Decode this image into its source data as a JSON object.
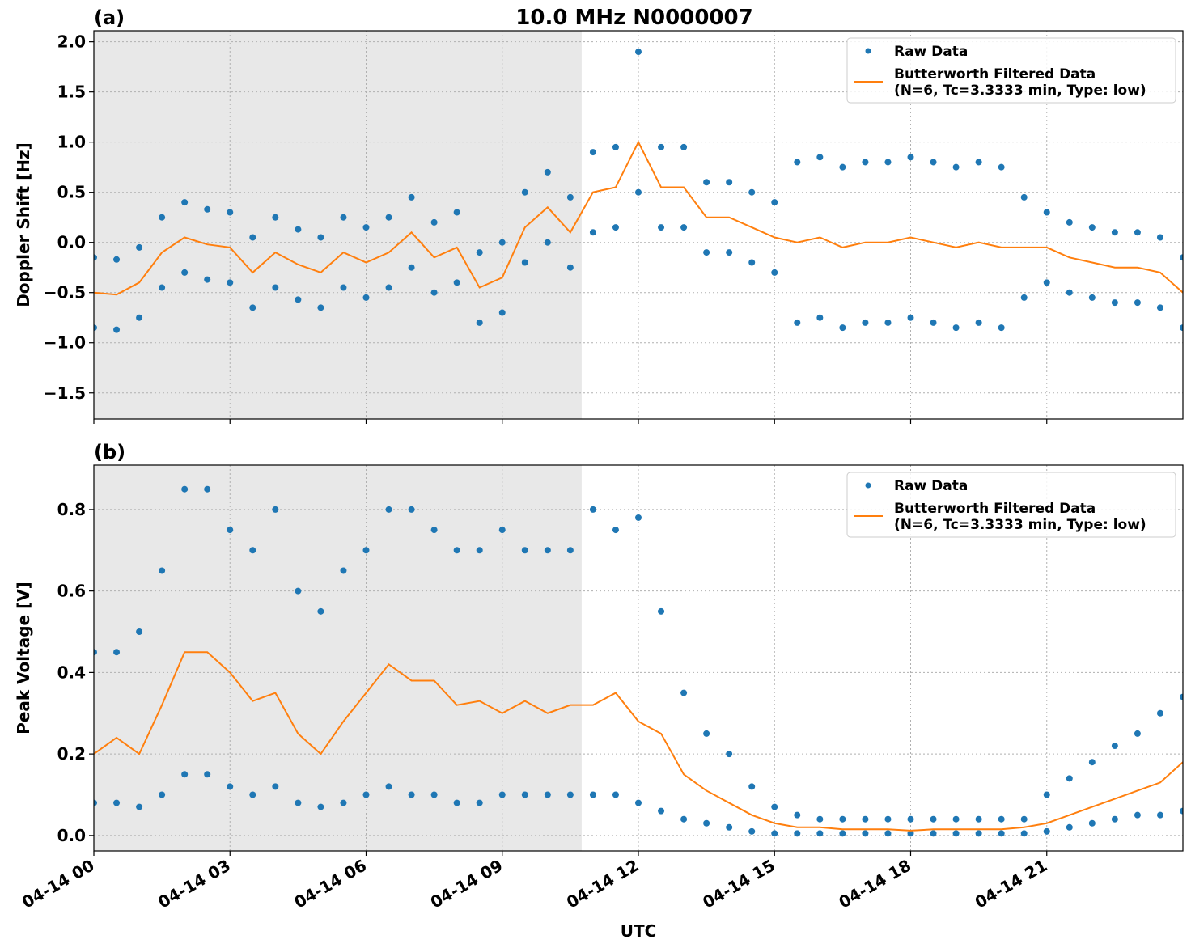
{
  "title": "10.0 MHz N0000007",
  "chart_data": [
    {
      "type": "scatter",
      "panel_label": "(a)",
      "ylabel": "Doppler Shift [Hz]",
      "xlim": [
        0,
        24
      ],
      "ylim": [
        -1.76,
        2.11
      ],
      "xticks": [
        0,
        3,
        6,
        9,
        12,
        15,
        18,
        21
      ],
      "yticks": [
        {
          "value": -1.5,
          "label": "−1.5"
        },
        {
          "value": -1.0,
          "label": "−1.0"
        },
        {
          "value": -0.5,
          "label": "−0.5"
        },
        {
          "value": 0,
          "label": "0.0"
        },
        0.5,
        {
          "value": 1.0,
          "label": "1.0"
        },
        1.5,
        {
          "value": 2.0,
          "label": "2.0"
        }
      ],
      "grid": true,
      "legend": "upper right",
      "shaded_span": [
        0,
        10.75
      ],
      "shade_color": "#e8e8e8",
      "series": [
        {
          "name": "Raw Data",
          "mode": "markers",
          "color": "#1f77b4",
          "x": [
            0,
            0,
            0.5,
            0.5,
            1,
            1,
            1.5,
            1.5,
            2,
            2,
            2.5,
            2.5,
            3,
            3,
            3.5,
            3.5,
            4,
            4,
            4.5,
            4.5,
            5,
            5,
            5.5,
            5.5,
            6,
            6,
            6.5,
            6.5,
            7,
            7,
            7.5,
            7.5,
            8,
            8,
            8.5,
            8.5,
            9,
            9,
            9.5,
            9.5,
            10,
            10,
            10.5,
            10.5,
            11,
            11,
            11.5,
            11.5,
            12,
            12,
            12.5,
            12.5,
            13,
            13,
            13.5,
            13.5,
            14,
            14,
            14.5,
            14.5,
            15,
            15,
            15.5,
            15.5,
            16,
            16,
            16.5,
            16.5,
            17,
            17,
            17.5,
            17.5,
            18,
            18,
            18.5,
            18.5,
            19,
            19,
            19.5,
            19.5,
            20,
            20,
            20.5,
            20.5,
            21,
            21,
            21.5,
            21.5,
            22,
            22,
            22.5,
            22.5,
            23,
            23,
            23.5,
            23.5,
            24,
            24
          ],
          "values": [
            -0.15,
            -0.85,
            -0.17,
            -0.87,
            -0.05,
            -0.75,
            0.25,
            -0.45,
            0.4,
            -0.3,
            0.33,
            -0.37,
            0.3,
            -0.4,
            0.05,
            -0.65,
            0.25,
            -0.45,
            0.13,
            -0.57,
            0.05,
            -0.65,
            0.25,
            -0.45,
            0.15,
            -0.55,
            0.25,
            -0.45,
            0.45,
            -0.25,
            0.2,
            -0.5,
            0.3,
            -0.4,
            -0.1,
            -0.8,
            0,
            -0.7,
            0.5,
            -0.2,
            0.7,
            0,
            0.45,
            -0.25,
            0.9,
            0.1,
            0.95,
            0.15,
            1.9,
            0.5,
            0.95,
            0.15,
            0.95,
            0.15,
            0.6,
            -0.1,
            0.6,
            -0.1,
            0.5,
            -0.2,
            0.4,
            -0.3,
            0.8,
            -0.8,
            0.85,
            -0.75,
            0.75,
            -0.85,
            0.8,
            -0.8,
            0.8,
            -0.8,
            0.85,
            -0.75,
            0.8,
            -0.8,
            0.75,
            -0.85,
            0.8,
            -0.8,
            0.75,
            -0.85,
            0.45,
            -0.55,
            0.3,
            -0.4,
            0.2,
            -0.5,
            0.15,
            -0.55,
            0.1,
            -0.6,
            0.1,
            -0.6,
            0.05,
            -0.65,
            -0.15,
            -0.85
          ]
        },
        {
          "name": "Butterworth Filtered Data\n(N=6, Tc=3.3333 min, Type: low)",
          "mode": "line",
          "color": "#ff7f0e",
          "x": [
            0,
            0.5,
            1,
            1.5,
            2,
            2.5,
            3,
            3.5,
            4,
            4.5,
            5,
            5.5,
            6,
            6.5,
            7,
            7.5,
            8,
            8.5,
            9,
            9.5,
            10,
            10.5,
            11,
            11.5,
            12,
            12.5,
            13,
            13.5,
            14,
            14.5,
            15,
            15.5,
            16,
            16.5,
            17,
            17.5,
            18,
            18.5,
            19,
            19.5,
            20,
            20.5,
            21,
            21.5,
            22,
            22.5,
            23,
            23.5,
            24
          ],
          "values": [
            -0.5,
            -0.52,
            -0.4,
            -0.1,
            0.05,
            -0.02,
            -0.05,
            -0.3,
            -0.1,
            -0.22,
            -0.3,
            -0.1,
            -0.2,
            -0.1,
            0.1,
            -0.15,
            -0.05,
            -0.45,
            -0.35,
            0.15,
            0.35,
            0.1,
            0.5,
            0.55,
            1.0,
            0.55,
            0.55,
            0.25,
            0.25,
            0.15,
            0.05,
            0,
            0.05,
            -0.05,
            0,
            0,
            0.05,
            0,
            -0.05,
            0,
            -0.05,
            -0.05,
            -0.05,
            -0.15,
            -0.2,
            -0.25,
            -0.25,
            -0.3,
            -0.5
          ]
        }
      ]
    },
    {
      "type": "scatter",
      "panel_label": "(b)",
      "ylabel": "Peak Voltage [V]",
      "xlabel": "UTC",
      "xlim": [
        0,
        24
      ],
      "ylim": [
        -0.038,
        0.909
      ],
      "xticks": [
        {
          "value": 0,
          "label": "04-14 00"
        },
        {
          "value": 3,
          "label": "04-14 03"
        },
        {
          "value": 6,
          "label": "04-14 06"
        },
        {
          "value": 9,
          "label": "04-14 09"
        },
        {
          "value": 12,
          "label": "04-14 12"
        },
        {
          "value": 15,
          "label": "04-14 15"
        },
        {
          "value": 18,
          "label": "04-14 18"
        },
        {
          "value": 21,
          "label": "04-14 21"
        }
      ],
      "yticks": [
        {
          "value": 0,
          "label": "0.0"
        },
        0.2,
        0.4,
        0.6,
        0.8
      ],
      "grid": true,
      "legend": "upper right",
      "shaded_span": [
        0,
        10.75
      ],
      "shade_color": "#e8e8e8",
      "series": [
        {
          "name": "Raw Data",
          "mode": "markers",
          "color": "#1f77b4",
          "x": [
            0,
            0,
            0.5,
            0.5,
            1,
            1,
            1.5,
            1.5,
            2,
            2,
            2.5,
            2.5,
            3,
            3,
            3.5,
            3.5,
            4,
            4,
            4.5,
            4.5,
            5,
            5,
            5.5,
            5.5,
            6,
            6,
            6.5,
            6.5,
            7,
            7,
            7.5,
            7.5,
            8,
            8,
            8.5,
            8.5,
            9,
            9,
            9.5,
            9.5,
            10,
            10,
            10.5,
            10.5,
            11,
            11,
            11.5,
            11.5,
            12,
            12,
            12.5,
            12.5,
            13,
            13,
            13.5,
            13.5,
            14,
            14,
            14.5,
            14.5,
            15,
            15,
            15.5,
            15.5,
            16,
            16,
            16.5,
            16.5,
            17,
            17,
            17.5,
            17.5,
            18,
            18,
            18.5,
            18.5,
            19,
            19,
            19.5,
            19.5,
            20,
            20,
            20.5,
            20.5,
            21,
            21,
            21.5,
            21.5,
            22,
            22,
            22.5,
            22.5,
            23,
            23,
            23.5,
            23.5,
            24,
            24
          ],
          "values": [
            0.45,
            0.08,
            0.45,
            0.08,
            0.5,
            0.07,
            0.65,
            0.1,
            0.85,
            0.15,
            0.85,
            0.15,
            0.75,
            0.12,
            0.7,
            0.1,
            0.8,
            0.12,
            0.6,
            0.08,
            0.55,
            0.07,
            0.65,
            0.08,
            0.7,
            0.1,
            0.8,
            0.12,
            0.8,
            0.1,
            0.75,
            0.1,
            0.7,
            0.08,
            0.7,
            0.08,
            0.75,
            0.1,
            0.7,
            0.1,
            0.7,
            0.1,
            0.7,
            0.1,
            0.8,
            0.1,
            0.75,
            0.1,
            0.78,
            0.08,
            0.55,
            0.06,
            0.35,
            0.04,
            0.25,
            0.03,
            0.2,
            0.02,
            0.12,
            0.01,
            0.07,
            0.005,
            0.05,
            0.005,
            0.04,
            0.005,
            0.04,
            0.005,
            0.04,
            0.005,
            0.04,
            0.005,
            0.04,
            0.005,
            0.04,
            0.005,
            0.04,
            0.005,
            0.04,
            0.005,
            0.04,
            0.005,
            0.04,
            0.005,
            0.1,
            0.01,
            0.14,
            0.02,
            0.18,
            0.03,
            0.22,
            0.04,
            0.25,
            0.05,
            0.3,
            0.05,
            0.34,
            0.06
          ]
        },
        {
          "name": "Butterworth Filtered Data\n(N=6, Tc=3.3333 min, Type: low)",
          "mode": "line",
          "color": "#ff7f0e",
          "x": [
            0,
            0.5,
            1,
            1.5,
            2,
            2.5,
            3,
            3.5,
            4,
            4.5,
            5,
            5.5,
            6,
            6.5,
            7,
            7.5,
            8,
            8.5,
            9,
            9.5,
            10,
            10.5,
            11,
            11.5,
            12,
            12.5,
            13,
            13.5,
            14,
            14.5,
            15,
            15.5,
            16,
            16.5,
            17,
            17.5,
            18,
            18.5,
            19,
            19.5,
            20,
            20.5,
            21,
            21.5,
            22,
            22.5,
            23,
            23.5,
            24
          ],
          "values": [
            0.2,
            0.24,
            0.2,
            0.32,
            0.45,
            0.45,
            0.4,
            0.33,
            0.35,
            0.25,
            0.2,
            0.28,
            0.35,
            0.42,
            0.38,
            0.38,
            0.32,
            0.33,
            0.3,
            0.33,
            0.3,
            0.32,
            0.32,
            0.35,
            0.28,
            0.25,
            0.15,
            0.11,
            0.08,
            0.05,
            0.03,
            0.02,
            0.02,
            0.015,
            0.015,
            0.015,
            0.012,
            0.015,
            0.015,
            0.015,
            0.015,
            0.02,
            0.03,
            0.05,
            0.07,
            0.09,
            0.11,
            0.13,
            0.18
          ]
        }
      ]
    }
  ]
}
